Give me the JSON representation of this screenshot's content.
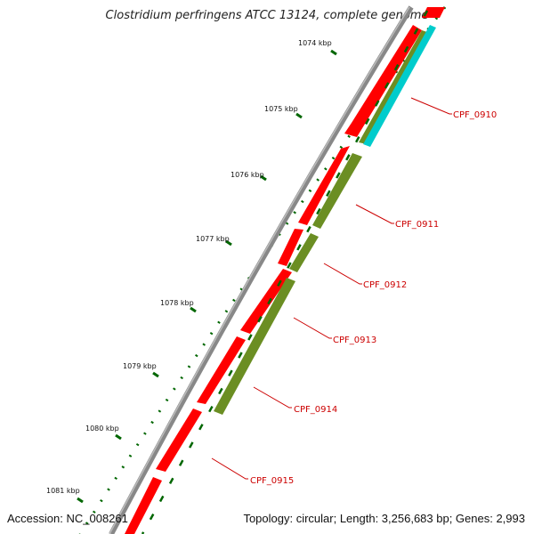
{
  "title": "Clostridium perfringens ATCC 13124, complete genome",
  "accession": "Accession: NC_008261",
  "topology": "Topology: circular; Length: 3,256,683 bp; Genes: 2,993",
  "ticks": [
    "1074 kbp",
    "1075 kbp",
    "1076 kbp",
    "1077 kbp",
    "1078 kbp",
    "1079 kbp",
    "1080 kbp",
    "1081 kbp"
  ],
  "genes": [
    "CPF_0910",
    "CPF_0911",
    "CPF_0912",
    "CPF_0913",
    "CPF_0914",
    "CPF_0915"
  ],
  "colors": {
    "backbone": "#888888",
    "forward_strand": "#ff0000",
    "reverse_strand": "#6b8e23",
    "extra_track": "#00cccc",
    "ticks": "#006600",
    "label_text": "#cc0000"
  }
}
